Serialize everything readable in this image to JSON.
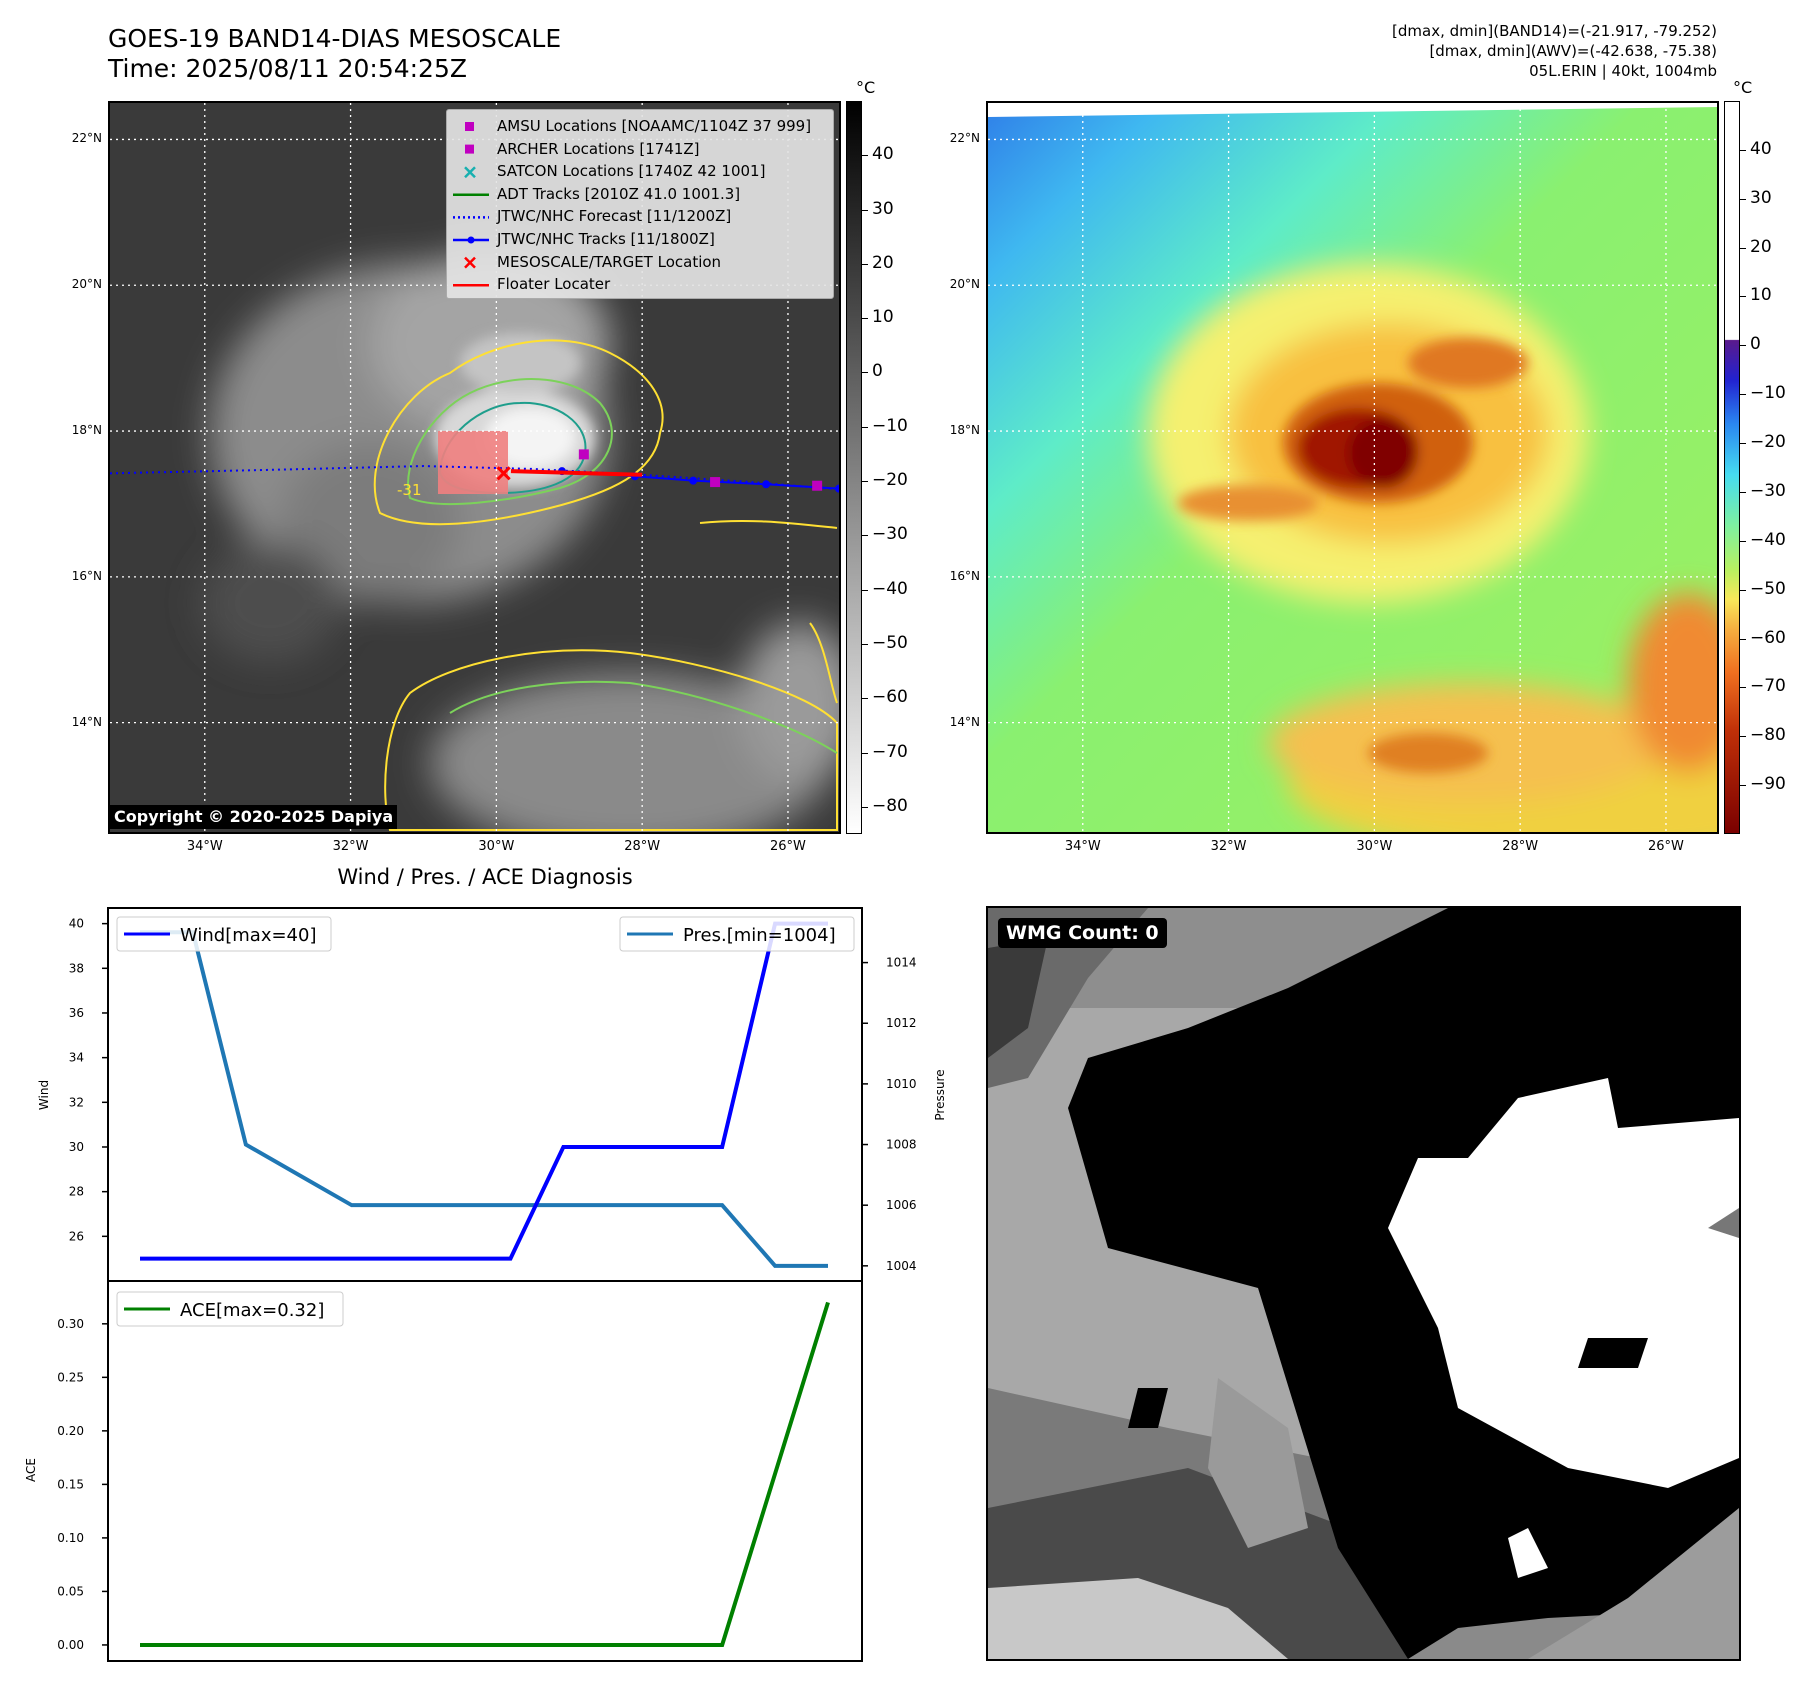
{
  "header": {
    "title_line1": "GOES-19 BAND14-DIAS MESOSCALE",
    "title_line2": "Time: 2025/08/11 20:54:25Z",
    "info_line1": "[dmax, dmin](BAND14)=(-21.917, -79.252)",
    "info_line2": "[dmax, dmin](AWV)=(-42.638, -75.38)",
    "info_line3": "05L.ERIN | 40kt, 1004mb"
  },
  "map_axes": {
    "lat_labels": [
      "22°N",
      "20°N",
      "18°N",
      "16°N",
      "14°N"
    ],
    "lat_values": [
      22,
      20,
      18,
      16,
      14
    ],
    "lon_labels": [
      "34°W",
      "32°W",
      "30°W",
      "28°W",
      "26°W"
    ],
    "lon_values": [
      -34,
      -32,
      -30,
      -28,
      -26
    ],
    "extent": {
      "lon_min": -35.3,
      "lon_max": -25.3,
      "lat_min": 12.5,
      "lat_max": 22.5
    }
  },
  "left_map": {
    "unit": "°C",
    "colorbar_ticks": [
      "40",
      "30",
      "20",
      "10",
      "0",
      "−10",
      "−20",
      "−30",
      "−40",
      "−50",
      "−60",
      "−70",
      "−80"
    ],
    "colorbar_values": [
      40,
      30,
      20,
      10,
      0,
      -10,
      -20,
      -30,
      -40,
      -50,
      -60,
      -70,
      -80
    ],
    "colorbar_range": [
      -85,
      50
    ],
    "copyright": "Copyright © 2020-2025 Dapiya",
    "contour_label": "-31",
    "legend": [
      {
        "label": "AMSU Locations [NOAAMC/1104Z 37 999]",
        "color": "#c000c0",
        "marker": "square"
      },
      {
        "label": "ARCHER Locations [1741Z]",
        "color": "#c000c0",
        "marker": "square"
      },
      {
        "label": "SATCON Locations [1740Z 42 1001]",
        "color": "#18b0b0",
        "marker": "x"
      },
      {
        "label": "ADT Tracks [2010Z 41.0 1001.3]",
        "color": "#008000",
        "marker": "line"
      },
      {
        "label": "JTWC/NHC Forecast [11/1200Z]",
        "color": "#0000ff",
        "marker": "dotted"
      },
      {
        "label": "JTWC/NHC Tracks [11/1800Z]",
        "color": "#0000ff",
        "marker": "line-dot"
      },
      {
        "label": "MESOSCALE/TARGET Location",
        "color": "#ff0000",
        "marker": "x"
      },
      {
        "label": "Floater Locater",
        "color": "#ff0000",
        "marker": "line"
      }
    ],
    "forecast_track": {
      "lon": [
        -35.3,
        -33,
        -31,
        -29.5,
        -28,
        -26.5,
        -25.3
      ],
      "lat": [
        17.42,
        17.47,
        17.52,
        17.48,
        17.4,
        17.3,
        17.2
      ]
    },
    "best_track": {
      "lon": [
        -29.1,
        -28.1,
        -27.3,
        -26.3,
        -25.3
      ],
      "lat": [
        17.45,
        17.38,
        17.32,
        17.27,
        17.21
      ]
    },
    "amsu_points": {
      "lon": [
        -28.8,
        -27.0,
        -25.6
      ],
      "lat": [
        17.68,
        17.3,
        17.25
      ]
    },
    "target_point": {
      "lon": -29.9,
      "lat": 17.42
    },
    "floater": {
      "lon": [
        -29.8,
        -28.0
      ],
      "lat": [
        17.45,
        17.4
      ]
    }
  },
  "right_map": {
    "unit": "°C",
    "colorbar_ticks": [
      "40",
      "30",
      "20",
      "10",
      "0",
      "−10",
      "−20",
      "−30",
      "−40",
      "−50",
      "−60",
      "−70",
      "−80",
      "−90"
    ],
    "colorbar_values": [
      40,
      30,
      20,
      10,
      0,
      -10,
      -20,
      -30,
      -40,
      -50,
      -60,
      -70,
      -80,
      -90
    ],
    "colorbar_range": [
      -100,
      50
    ]
  },
  "diagnosis": {
    "title": "Wind / Pres. / ACE Diagnosis",
    "wind_ylabel": "Wind",
    "pres_ylabel": "Pressure",
    "ace_ylabel": "ACE",
    "wind_legend": "Wind[max=40]",
    "pres_legend": "Pres.[min=1004]",
    "ace_legend": "ACE[max=0.32]",
    "wind_color": "#0000ff",
    "pres_color": "#1f77b4",
    "ace_color": "#008000"
  },
  "chart_data": [
    {
      "type": "line",
      "title": "Wind / Pres. / ACE Diagnosis",
      "x": [
        0,
        1,
        2,
        3,
        4,
        5,
        6,
        7,
        8,
        9,
        10,
        11,
        12,
        13
      ],
      "series": [
        {
          "name": "Wind[max=40]",
          "axis": "left",
          "values": [
            25,
            25,
            25,
            25,
            25,
            25,
            25,
            25,
            30,
            30,
            30,
            30,
            40,
            40
          ]
        },
        {
          "name": "Pres.[min=1004]",
          "axis": "right",
          "values": [
            1015,
            1015,
            1008,
            1007,
            1006,
            1006,
            1006,
            1006,
            1006,
            1006,
            1006,
            1006,
            1004,
            1004
          ]
        }
      ],
      "ylabel": "Wind",
      "y2label": "Pressure",
      "yticks": [
        26,
        28,
        30,
        32,
        34,
        36,
        38,
        40
      ],
      "y2ticks": [
        1004,
        1006,
        1008,
        1010,
        1012,
        1014
      ],
      "ylim": [
        24,
        40.7
      ],
      "y2lim": [
        1003.5,
        1015.8
      ]
    },
    {
      "type": "line",
      "x": [
        0,
        1,
        2,
        3,
        4,
        5,
        6,
        7,
        8,
        9,
        10,
        11,
        12,
        13
      ],
      "series": [
        {
          "name": "ACE[max=0.32]",
          "values": [
            0,
            0,
            0,
            0,
            0,
            0,
            0,
            0,
            0,
            0,
            0,
            0,
            0.16,
            0.32
          ]
        }
      ],
      "ylabel": "ACE",
      "yticks": [
        0.0,
        0.05,
        0.1,
        0.15,
        0.2,
        0.25,
        0.3
      ],
      "ytick_labels": [
        "0.00",
        "0.05",
        "0.10",
        "0.15",
        "0.20",
        "0.25",
        "0.30"
      ],
      "ylim": [
        -0.015,
        0.34
      ]
    }
  ],
  "wmg": {
    "label": "WMG Count: 0"
  }
}
